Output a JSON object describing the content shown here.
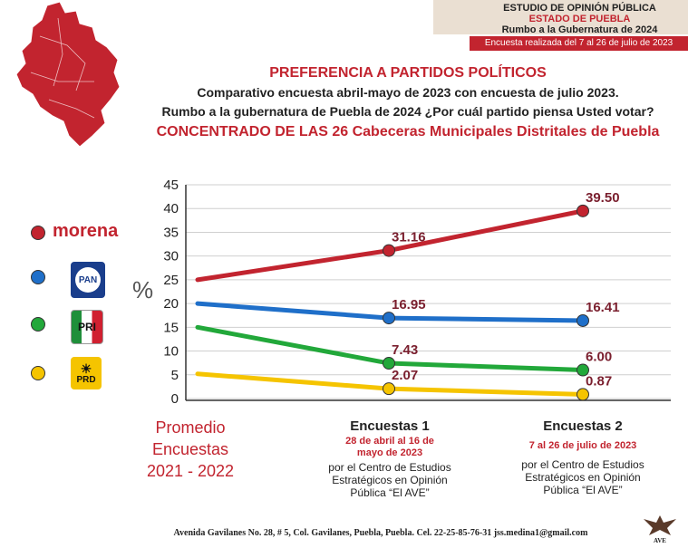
{
  "header": {
    "line1": "ESTUDIO DE OPINIÓN PÚBLICA",
    "line2": "ESTADO DE PUEBLA",
    "line3": "Rumbo a la Gubernatura de 2024",
    "dates": "Encuesta realizada del 7 al 26 de julio de 2023"
  },
  "titles": {
    "main": "PREFERENCIA A PARTIDOS POLÍTICOS",
    "sub1": "Comparativo encuesta abril-mayo de 2023 con encuesta de julio 2023.",
    "sub2": "Rumbo a la gubernatura de Puebla de 2024 ¿Por cuál partido piensa Usted votar?",
    "sub3": "CONCENTRADO DE LAS 26 Cabeceras Municipales Distritales de Puebla"
  },
  "legend": {
    "morena": "morena",
    "pan": "PAN",
    "pri_letters": "PRI",
    "prd": "PRD"
  },
  "colors": {
    "morena": "#c2242f",
    "pan": "#1f6fc9",
    "pri": "#22a83a",
    "prd": "#f5c400",
    "accent": "#c2242f"
  },
  "y_unit": "%",
  "x_labels": {
    "promedio": [
      "Promedio",
      "Encuestas",
      "2021 - 2022"
    ],
    "enc1_title": "Encuestas 1",
    "enc1_date": [
      "28 de abril al 16 de",
      "mayo de 2023"
    ],
    "enc1_src": [
      "por el Centro de Estudios",
      "Estratégicos en Opinión",
      "Pública “El AVE”"
    ],
    "enc2_title": "Encuestas 2",
    "enc2_date": [
      "7 al 26 de julio de 2023"
    ],
    "enc2_src": [
      "por el Centro de Estudios",
      "Estratégicos en Opinión",
      "Pública “El AVE”"
    ]
  },
  "footer": "Avenida Gavilanes No. 28, # 5, Col. Gavilanes, Puebla, Puebla. Cel. 22-25-85-76-31  jss.medina1@gmail.com",
  "logo_text": "AVE",
  "chart_data": {
    "type": "line",
    "categories": [
      "Promedio Encuestas 2021 - 2022",
      "Encuestas 1",
      "Encuestas 2"
    ],
    "ylim": [
      0,
      45
    ],
    "yticks": [
      0,
      5,
      10,
      15,
      20,
      25,
      30,
      35,
      40,
      45
    ],
    "grid": true,
    "series": [
      {
        "name": "morena",
        "values": [
          25,
          31.16,
          39.5
        ],
        "labels": [
          "",
          "31.16",
          "39.50"
        ]
      },
      {
        "name": "PAN",
        "values": [
          20,
          16.95,
          16.41
        ],
        "labels": [
          "",
          "16.95",
          "16.41"
        ]
      },
      {
        "name": "PRI",
        "values": [
          15,
          7.43,
          6.0
        ],
        "labels": [
          "",
          "7.43",
          "6.00"
        ]
      },
      {
        "name": "PRD",
        "values": [
          5.2,
          2.07,
          0.87
        ],
        "labels": [
          "",
          "2.07",
          "0.87"
        ]
      }
    ]
  }
}
